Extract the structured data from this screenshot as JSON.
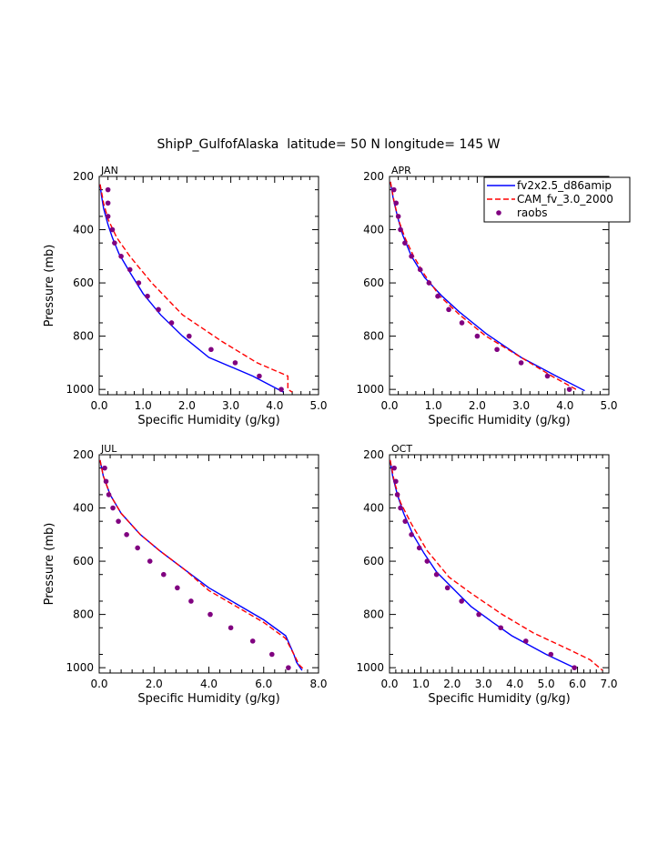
{
  "title": "ShipP_GulfofAlaska  latitude= 50 N longitude= 145 W",
  "colors": {
    "fv": "#0000ff",
    "cam": "#ff0000",
    "raobs": "#800080"
  },
  "legend": {
    "placement": "top-right",
    "entries": [
      {
        "label": "fv2x2.5_d86amip",
        "style": "solid-line",
        "color": "#0000ff"
      },
      {
        "label": "CAM_fv_3.0_2000",
        "style": "dashed-line",
        "color": "#ff0000"
      },
      {
        "label": "raobs",
        "style": "dot",
        "color": "#800080"
      }
    ]
  },
  "chart_data": [
    {
      "type": "line",
      "panel_label": "JAN",
      "xlabel": "Specific Humidity (g/kg)",
      "ylabel": "Pressure (mb)",
      "xlim": [
        0,
        5
      ],
      "ylim": [
        200,
        1020
      ],
      "y_inverted": true,
      "xticks": [
        0,
        1,
        2,
        3,
        4,
        5
      ],
      "xticklabels": [
        "0.0",
        "1.0",
        "2.0",
        "3.0",
        "4.0",
        "5.0"
      ],
      "yticks": [
        200,
        400,
        600,
        800,
        1000
      ],
      "yticklabels": [
        "200",
        "400",
        "600",
        "800",
        "1000"
      ],
      "series": [
        {
          "name": "fv2x2.5_d86amip",
          "style": "solid",
          "x": [
            0.02,
            0.05,
            0.1,
            0.2,
            0.3,
            0.45,
            0.7,
            1.0,
            1.4,
            1.9,
            2.5,
            3.5,
            4.2
          ],
          "y": [
            230,
            270,
            320,
            380,
            430,
            490,
            560,
            640,
            720,
            800,
            880,
            950,
            1010
          ]
        },
        {
          "name": "CAM_fv_3.0_2000",
          "style": "dashed",
          "x": [
            0.02,
            0.1,
            0.2,
            0.4,
            0.7,
            1.2,
            1.9,
            2.8,
            3.6,
            4.3,
            4.3,
            4.4
          ],
          "y": [
            230,
            300,
            360,
            430,
            500,
            600,
            720,
            820,
            900,
            950,
            1000,
            1010
          ]
        },
        {
          "name": "raobs",
          "style": "dots",
          "x": [
            0.2,
            0.2,
            0.2,
            0.3,
            0.35,
            0.5,
            0.7,
            0.9,
            1.1,
            1.35,
            1.65,
            2.05,
            2.55,
            3.1,
            3.65,
            4.15
          ],
          "y": [
            250,
            300,
            350,
            400,
            450,
            500,
            550,
            600,
            650,
            700,
            750,
            800,
            850,
            900,
            950,
            1000
          ]
        }
      ]
    },
    {
      "type": "line",
      "panel_label": "APR",
      "xlabel": "Specific Humidity (g/kg)",
      "ylabel": "",
      "xlim": [
        0,
        5
      ],
      "ylim": [
        200,
        1020
      ],
      "y_inverted": true,
      "xticks": [
        0,
        1,
        2,
        3,
        4,
        5
      ],
      "xticklabels": [
        "0.0",
        "1.0",
        "2.0",
        "3.0",
        "4.0",
        "5.0"
      ],
      "yticks": [
        200,
        400,
        600,
        800,
        1000
      ],
      "yticklabels": [
        "200",
        "400",
        "600",
        "800",
        "1000"
      ],
      "series": [
        {
          "name": "fv2x2.5_d86amip",
          "style": "solid",
          "x": [
            0.02,
            0.08,
            0.18,
            0.3,
            0.5,
            0.8,
            1.2,
            1.6,
            2.2,
            3.0,
            3.8,
            4.45
          ],
          "y": [
            220,
            280,
            350,
            420,
            500,
            580,
            650,
            710,
            790,
            880,
            950,
            1005
          ]
        },
        {
          "name": "CAM_fv_3.0_2000",
          "style": "dashed",
          "x": [
            0.02,
            0.1,
            0.2,
            0.35,
            0.55,
            0.8,
            1.15,
            1.6,
            2.2,
            3.0,
            3.7,
            4.25
          ],
          "y": [
            220,
            290,
            360,
            430,
            500,
            570,
            650,
            720,
            800,
            880,
            950,
            1000
          ]
        },
        {
          "name": "raobs",
          "style": "dots",
          "x": [
            0.1,
            0.15,
            0.2,
            0.25,
            0.35,
            0.5,
            0.7,
            0.9,
            1.1,
            1.35,
            1.65,
            2.0,
            2.45,
            3.0,
            3.6,
            4.1
          ],
          "y": [
            250,
            300,
            350,
            400,
            450,
            500,
            550,
            600,
            650,
            700,
            750,
            800,
            850,
            900,
            950,
            1000
          ]
        }
      ]
    },
    {
      "type": "line",
      "panel_label": "JUL",
      "xlabel": "Specific Humidity (g/kg)",
      "ylabel": "Pressure (mb)",
      "xlim": [
        0,
        8
      ],
      "ylim": [
        200,
        1020
      ],
      "y_inverted": true,
      "xticks": [
        0,
        2,
        4,
        6,
        8
      ],
      "xticklabels": [
        "0.0",
        "2.0",
        "4.0",
        "6.0",
        "8.0"
      ],
      "yticks": [
        200,
        400,
        600,
        800,
        1000
      ],
      "yticklabels": [
        "200",
        "400",
        "600",
        "800",
        "1000"
      ],
      "series": [
        {
          "name": "fv2x2.5_d86amip",
          "style": "solid",
          "x": [
            0.03,
            0.15,
            0.4,
            0.8,
            1.5,
            2.2,
            3.1,
            4.0,
            5.0,
            6.0,
            6.8,
            7.1,
            7.2,
            7.4
          ],
          "y": [
            220,
            280,
            350,
            420,
            500,
            560,
            630,
            700,
            760,
            820,
            880,
            950,
            980,
            1010
          ]
        },
        {
          "name": "CAM_fv_3.0_2000",
          "style": "dashed",
          "x": [
            0.03,
            0.15,
            0.4,
            0.8,
            1.5,
            2.2,
            3.1,
            4.0,
            5.0,
            6.0,
            6.8,
            7.1,
            7.3,
            7.5
          ],
          "y": [
            220,
            280,
            350,
            420,
            500,
            560,
            630,
            710,
            770,
            830,
            890,
            950,
            990,
            1010
          ]
        },
        {
          "name": "raobs",
          "style": "dots",
          "x": [
            0.2,
            0.25,
            0.35,
            0.5,
            0.7,
            1.0,
            1.4,
            1.85,
            2.35,
            2.85,
            3.35,
            4.05,
            4.8,
            5.6,
            6.3,
            6.9
          ],
          "y": [
            250,
            300,
            350,
            400,
            450,
            500,
            550,
            600,
            650,
            700,
            750,
            800,
            850,
            900,
            950,
            1000
          ]
        }
      ]
    },
    {
      "type": "line",
      "panel_label": "OCT",
      "xlabel": "Specific Humidity (g/kg)",
      "ylabel": "",
      "xlim": [
        0,
        7
      ],
      "ylim": [
        200,
        1020
      ],
      "y_inverted": true,
      "xticks": [
        0,
        1,
        2,
        3,
        4,
        5,
        6,
        7
      ],
      "xticklabels": [
        "0.0",
        "1.0",
        "2.0",
        "3.0",
        "4.0",
        "5.0",
        "6.0",
        "7.0"
      ],
      "yticks": [
        200,
        400,
        600,
        800,
        1000
      ],
      "yticklabels": [
        "200",
        "400",
        "600",
        "800",
        "1000"
      ],
      "series": [
        {
          "name": "fv2x2.5_d86amip",
          "style": "solid",
          "x": [
            0.02,
            0.1,
            0.25,
            0.45,
            0.75,
            1.1,
            1.5,
            2.0,
            2.6,
            3.3,
            3.9,
            5.0,
            5.9
          ],
          "y": [
            220,
            280,
            350,
            420,
            500,
            570,
            640,
            700,
            770,
            830,
            880,
            950,
            1000
          ]
        },
        {
          "name": "CAM_fv_3.0_2000",
          "style": "dashed",
          "x": [
            0.02,
            0.15,
            0.35,
            0.7,
            1.2,
            1.9,
            2.6,
            3.6,
            4.6,
            5.7,
            6.4,
            6.8
          ],
          "y": [
            220,
            300,
            380,
            460,
            560,
            660,
            720,
            800,
            870,
            930,
            970,
            1010
          ]
        },
        {
          "name": "raobs",
          "style": "dots",
          "x": [
            0.15,
            0.2,
            0.25,
            0.35,
            0.5,
            0.7,
            0.95,
            1.2,
            1.5,
            1.85,
            2.3,
            2.85,
            3.55,
            4.35,
            5.15,
            5.9
          ],
          "y": [
            250,
            300,
            350,
            400,
            450,
            500,
            550,
            600,
            650,
            700,
            750,
            800,
            850,
            900,
            950,
            1000
          ]
        }
      ]
    }
  ]
}
